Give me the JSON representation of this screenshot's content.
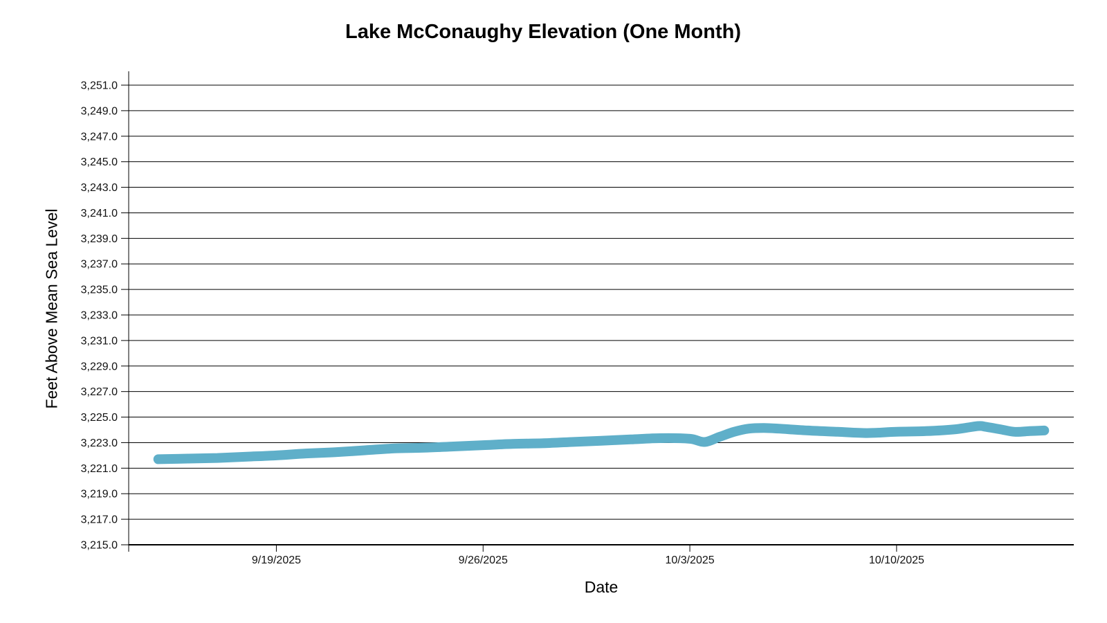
{
  "chart_data": {
    "type": "line",
    "title": "Lake McConaughy Elevation (One Month)",
    "xlabel": "Date",
    "ylabel": "Feet Above Mean Sea Level",
    "legend": "none",
    "grid": "horizontal",
    "background_color": "#ffffff",
    "grid_color": "#000000",
    "text_color": "#000000",
    "ylim": [
      3215.0,
      3251.0
    ],
    "y_tick_step": 2.0,
    "y_tick_labels": [
      "3,215.0",
      "3,217.0",
      "3,219.0",
      "3,221.0",
      "3,223.0",
      "3,225.0",
      "3,227.0",
      "3,229.0",
      "3,231.0",
      "3,233.0",
      "3,235.0",
      "3,237.0",
      "3,239.0",
      "3,241.0",
      "3,243.0",
      "3,245.0",
      "3,247.0",
      "3,249.0",
      "3,251.0"
    ],
    "x_range": [
      "9/14/2025",
      "10/16/2025"
    ],
    "x_ticks": [
      "9/19/2025",
      "9/26/2025",
      "10/3/2025",
      "10/10/2025"
    ],
    "series": [
      {
        "color": "#5FAFC9",
        "stroke_width": 14,
        "points": [
          {
            "date": "9/15/2025",
            "value": 3221.7
          },
          {
            "date": "9/16/2025",
            "value": 3221.75
          },
          {
            "date": "9/17/2025",
            "value": 3221.8
          },
          {
            "date": "9/18/2025",
            "value": 3221.9
          },
          {
            "date": "9/19/2025",
            "value": 3222.0
          },
          {
            "date": "9/20/2025",
            "value": 3222.15
          },
          {
            "date": "9/21/2025",
            "value": 3222.25
          },
          {
            "date": "9/22/2025",
            "value": 3222.4
          },
          {
            "date": "9/23/2025",
            "value": 3222.55
          },
          {
            "date": "9/24/2025",
            "value": 3222.6
          },
          {
            "date": "9/25/2025",
            "value": 3222.7
          },
          {
            "date": "9/26/2025",
            "value": 3222.8
          },
          {
            "date": "9/27/2025",
            "value": 3222.9
          },
          {
            "date": "9/28/2025",
            "value": 3222.95
          },
          {
            "date": "9/29/2025",
            "value": 3223.05
          },
          {
            "date": "9/30/2025",
            "value": 3223.15
          },
          {
            "date": "10/1/2025",
            "value": 3223.25
          },
          {
            "date": "10/2/2025",
            "value": 3223.35
          },
          {
            "date": "10/3/2025",
            "value": 3223.3
          },
          {
            "date": "10/3/2025 12:00",
            "value": 3223.05
          },
          {
            "date": "10/4/2025",
            "value": 3223.45
          },
          {
            "date": "10/4/2025 12:00",
            "value": 3223.85
          },
          {
            "date": "10/5/2025",
            "value": 3224.1
          },
          {
            "date": "10/5/2025 12:00",
            "value": 3224.15
          },
          {
            "date": "10/6/2025",
            "value": 3224.1
          },
          {
            "date": "10/7/2025",
            "value": 3223.95
          },
          {
            "date": "10/8/2025",
            "value": 3223.85
          },
          {
            "date": "10/9/2025",
            "value": 3223.75
          },
          {
            "date": "10/10/2025",
            "value": 3223.85
          },
          {
            "date": "10/11/2025",
            "value": 3223.9
          },
          {
            "date": "10/12/2025",
            "value": 3224.05
          },
          {
            "date": "10/12/2025 18:00",
            "value": 3224.3
          },
          {
            "date": "10/13/2025",
            "value": 3224.25
          },
          {
            "date": "10/13/2025 12:00",
            "value": 3224.05
          },
          {
            "date": "10/14/2025",
            "value": 3223.85
          },
          {
            "date": "10/14/2025 12:00",
            "value": 3223.9
          },
          {
            "date": "10/15/2025",
            "value": 3223.95
          }
        ]
      }
    ]
  }
}
